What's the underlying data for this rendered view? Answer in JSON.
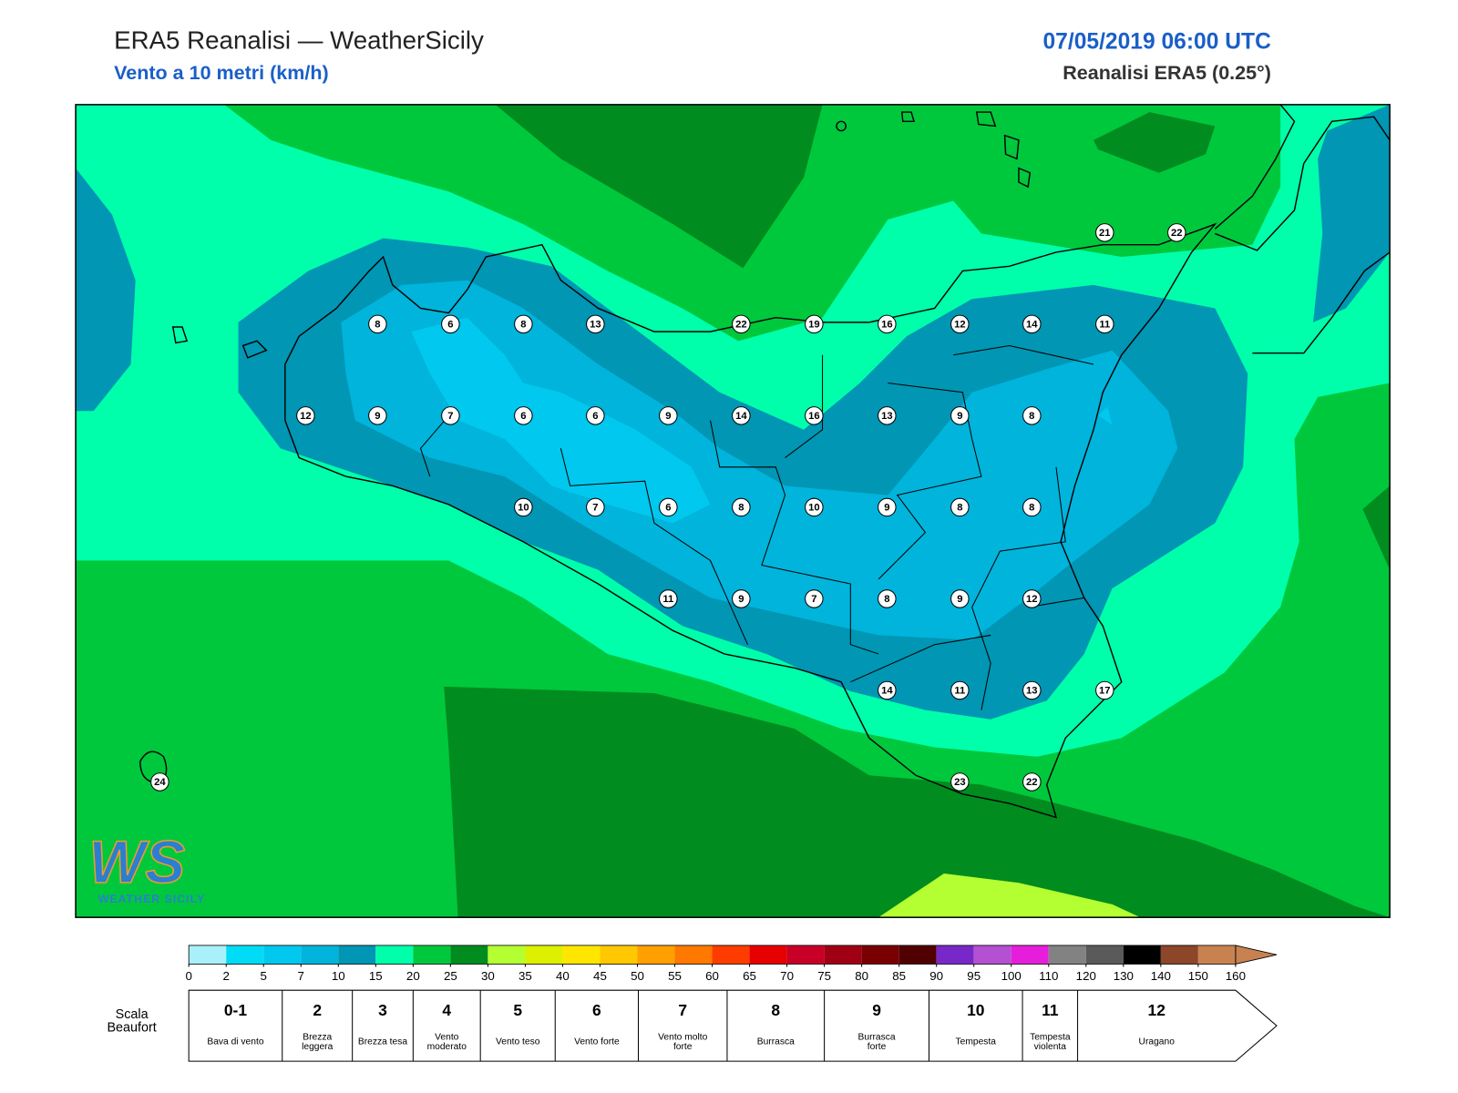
{
  "header": {
    "title": "ERA5 Reanalisi — WeatherSicily",
    "subtitle": "Vento a 10 metri (km/h)",
    "date": "07/05/2019 06:00 UTC",
    "source": "Reanalisi ERA5 (0.25°)"
  },
  "stations": [
    21,
    22,
    8,
    6,
    8,
    13,
    22,
    19,
    16,
    12,
    14,
    11,
    12,
    9,
    7,
    6,
    6,
    9,
    14,
    16,
    13,
    9,
    8,
    10,
    7,
    6,
    8,
    10,
    9,
    8,
    8,
    11,
    9,
    7,
    8,
    9,
    12,
    14,
    11,
    13,
    17,
    24,
    23,
    22
  ],
  "logo": {
    "mark": "WS",
    "text": "Weather Sicily"
  },
  "colorbar": {
    "ticks": [
      0,
      2,
      5,
      7,
      10,
      15,
      20,
      25,
      30,
      35,
      40,
      45,
      50,
      55,
      60,
      65,
      70,
      75,
      80,
      85,
      90,
      95,
      100,
      110,
      120,
      130,
      140,
      150,
      160
    ],
    "colors": [
      "#aaf0fa",
      "#00dcf5",
      "#00c8ee",
      "#00b4dc",
      "#0096b4",
      "#00ffaa",
      "#00c83c",
      "#008c1e",
      "#b4ff32",
      "#dcf000",
      "#ffe600",
      "#ffc800",
      "#ffa000",
      "#ff7800",
      "#ff3c00",
      "#e60000",
      "#c80028",
      "#a00014",
      "#780000",
      "#500000",
      "#7828c8",
      "#b450d2",
      "#e61edc",
      "#828282",
      "#5a5a5a",
      "#000000",
      "#8c4628",
      "#c88250"
    ]
  },
  "beaufort": {
    "label": "Scala Beaufort",
    "levels": [
      {
        "force": "0-1",
        "name": "Bava di vento"
      },
      {
        "force": "2",
        "name": "Brezza leggera"
      },
      {
        "force": "3",
        "name": "Brezza tesa"
      },
      {
        "force": "4",
        "name": "Vento moderato"
      },
      {
        "force": "5",
        "name": "Vento teso"
      },
      {
        "force": "6",
        "name": "Vento forte"
      },
      {
        "force": "7",
        "name": "Vento molto forte"
      },
      {
        "force": "8",
        "name": "Burrasca"
      },
      {
        "force": "9",
        "name": "Burrasca forte"
      },
      {
        "force": "10",
        "name": "Tempesta"
      },
      {
        "force": "11",
        "name": "Tempesta violenta"
      },
      {
        "force": "12",
        "name": "Uragano"
      }
    ]
  }
}
